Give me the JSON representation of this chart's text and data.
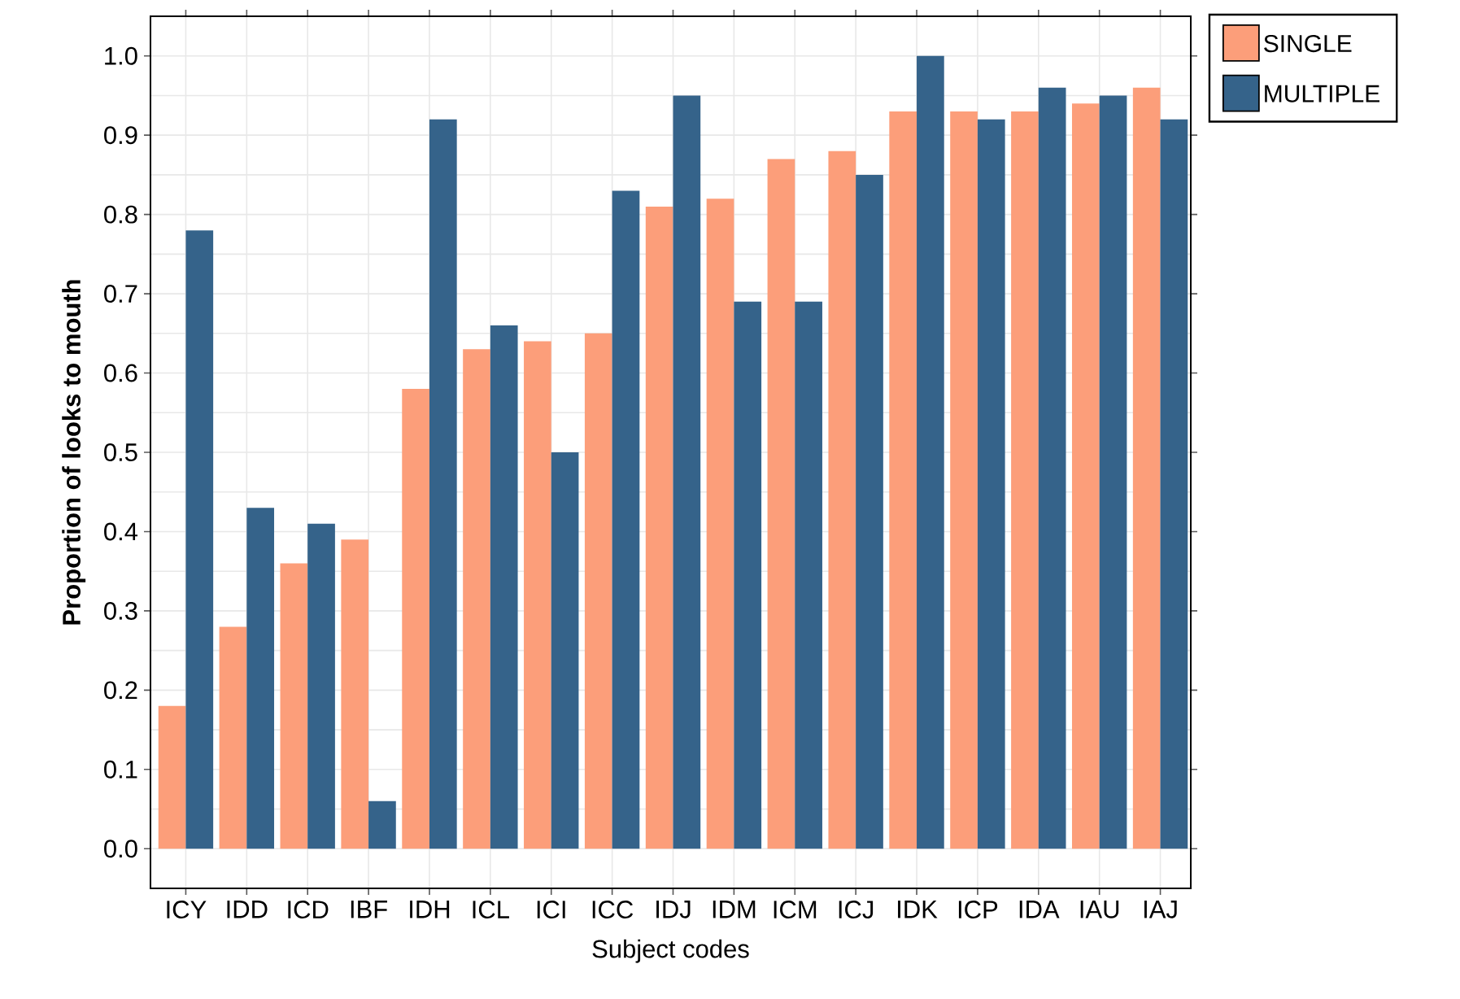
{
  "chart_data": {
    "type": "bar",
    "xlabel": "Subject codes",
    "ylabel": "Proportion of looks to mouth",
    "categories": [
      "ICY",
      "IDD",
      "ICD",
      "IBF",
      "IDH",
      "ICL",
      "ICI",
      "ICC",
      "IDJ",
      "IDM",
      "ICM",
      "ICJ",
      "IDK",
      "ICP",
      "IDA",
      "IAU",
      "IAJ"
    ],
    "series": [
      {
        "name": "SINGLE",
        "color": "#fc9e7a",
        "values": [
          0.18,
          0.28,
          0.36,
          0.39,
          0.58,
          0.63,
          0.64,
          0.65,
          0.81,
          0.82,
          0.87,
          0.88,
          0.93,
          0.93,
          0.93,
          0.94,
          0.96
        ]
      },
      {
        "name": "MULTIPLE",
        "color": "#35638a",
        "values": [
          0.78,
          0.43,
          0.41,
          0.06,
          0.92,
          0.66,
          0.5,
          0.83,
          0.95,
          0.69,
          0.69,
          0.85,
          1.0,
          0.92,
          0.96,
          0.95,
          0.92
        ]
      }
    ],
    "ylim": [
      -0.05,
      1.05
    ],
    "yticks": [
      {
        "value": 0,
        "label": "0.0"
      },
      0.1,
      0.2,
      0.3,
      0.4,
      0.5,
      0.6,
      0.7,
      0.8,
      0.9,
      {
        "value": 1,
        "label": "1.0"
      }
    ],
    "grid": true,
    "legend": "top right"
  }
}
